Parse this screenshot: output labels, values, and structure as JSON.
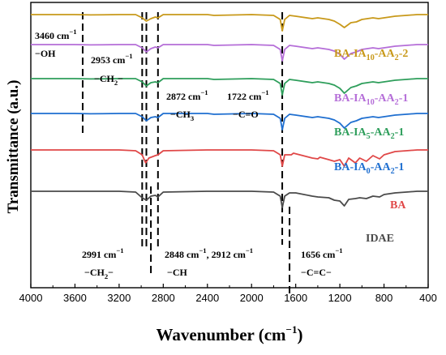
{
  "chart_data": {
    "type": "line",
    "title": "",
    "xlabel": "Wavenumber (cm",
    "xlabel_sup": "−1",
    "xlabel_tail": ")",
    "ylabel": "Transmittance (a.u.)",
    "xlim": [
      4000,
      400
    ],
    "x_ticks": [
      "4000",
      "3600",
      "3200",
      "2800",
      "2400",
      "2000",
      "1600",
      "1200",
      "800",
      "400"
    ],
    "grid": false,
    "series": [
      {
        "name_parts": [
          [
            "BA-IA",
            ""
          ],
          [
            "10",
            "sub"
          ],
          [
            "-AA",
            ""
          ],
          [
            "2",
            "sub"
          ],
          [
            "-2",
            ""
          ]
        ],
        "color": "#C8991A",
        "points": [
          [
            4000,
            0.0
          ],
          [
            3600,
            0.0
          ],
          [
            3460,
            -0.02
          ],
          [
            3200,
            0.0
          ],
          [
            3050,
            0.0
          ],
          [
            2991,
            -0.2
          ],
          [
            2953,
            -0.4
          ],
          [
            2912,
            -0.25
          ],
          [
            2872,
            -0.15
          ],
          [
            2848,
            -0.2
          ],
          [
            2800,
            0.0
          ],
          [
            2400,
            0.0
          ],
          [
            2340,
            -0.05
          ],
          [
            2000,
            0.0
          ],
          [
            1800,
            -0.05
          ],
          [
            1740,
            -0.3
          ],
          [
            1722,
            -1.0
          ],
          [
            1700,
            -0.3
          ],
          [
            1656,
            -0.05
          ],
          [
            1600,
            -0.1
          ],
          [
            1450,
            -0.25
          ],
          [
            1400,
            -0.2
          ],
          [
            1300,
            -0.3
          ],
          [
            1250,
            -0.4
          ],
          [
            1200,
            -0.6
          ],
          [
            1160,
            -0.8
          ],
          [
            1100,
            -0.5
          ],
          [
            1050,
            -0.45
          ],
          [
            1000,
            -0.3
          ],
          [
            950,
            -0.25
          ],
          [
            900,
            -0.2
          ],
          [
            850,
            -0.25
          ],
          [
            800,
            -0.2
          ],
          [
            750,
            -0.15
          ],
          [
            700,
            -0.1
          ],
          [
            600,
            -0.05
          ],
          [
            500,
            0.0
          ],
          [
            400,
            0.0
          ]
        ]
      },
      {
        "name_parts": [
          [
            "BA-IA",
            ""
          ],
          [
            "10",
            "sub"
          ],
          [
            "-AA",
            ""
          ],
          [
            "2",
            "sub"
          ],
          [
            "-1",
            ""
          ]
        ],
        "color": "#B56ED8",
        "points": [
          [
            4000,
            0.0
          ],
          [
            3600,
            0.0
          ],
          [
            3460,
            -0.02
          ],
          [
            3200,
            0.0
          ],
          [
            3050,
            0.0
          ],
          [
            2991,
            -0.2
          ],
          [
            2953,
            -0.45
          ],
          [
            2912,
            -0.25
          ],
          [
            2872,
            -0.15
          ],
          [
            2848,
            -0.2
          ],
          [
            2800,
            0.0
          ],
          [
            2400,
            0.0
          ],
          [
            2340,
            -0.05
          ],
          [
            2000,
            0.0
          ],
          [
            1800,
            -0.05
          ],
          [
            1740,
            -0.3
          ],
          [
            1722,
            -1.0
          ],
          [
            1700,
            -0.3
          ],
          [
            1656,
            -0.05
          ],
          [
            1600,
            -0.1
          ],
          [
            1450,
            -0.25
          ],
          [
            1400,
            -0.2
          ],
          [
            1300,
            -0.3
          ],
          [
            1250,
            -0.4
          ],
          [
            1200,
            -0.6
          ],
          [
            1160,
            -0.9
          ],
          [
            1100,
            -0.55
          ],
          [
            1050,
            -0.45
          ],
          [
            1000,
            -0.3
          ],
          [
            950,
            -0.25
          ],
          [
            900,
            -0.2
          ],
          [
            850,
            -0.25
          ],
          [
            800,
            -0.2
          ],
          [
            750,
            -0.15
          ],
          [
            700,
            -0.1
          ],
          [
            600,
            -0.05
          ],
          [
            500,
            0.0
          ],
          [
            400,
            0.0
          ]
        ]
      },
      {
        "name_parts": [
          [
            "BA-IA",
            ""
          ],
          [
            "5",
            "sub"
          ],
          [
            "-AA",
            ""
          ],
          [
            "2",
            "sub"
          ],
          [
            "-1",
            ""
          ]
        ],
        "color": "#2E9E5B",
        "points": [
          [
            4000,
            0.0
          ],
          [
            3600,
            0.0
          ],
          [
            3460,
            -0.02
          ],
          [
            3200,
            0.0
          ],
          [
            3050,
            0.0
          ],
          [
            2991,
            -0.2
          ],
          [
            2953,
            -0.45
          ],
          [
            2912,
            -0.25
          ],
          [
            2872,
            -0.2
          ],
          [
            2848,
            -0.25
          ],
          [
            2800,
            0.0
          ],
          [
            2400,
            0.0
          ],
          [
            2340,
            -0.05
          ],
          [
            2000,
            0.0
          ],
          [
            1800,
            -0.05
          ],
          [
            1740,
            -0.3
          ],
          [
            1722,
            -1.0
          ],
          [
            1700,
            -0.3
          ],
          [
            1656,
            -0.05
          ],
          [
            1600,
            -0.1
          ],
          [
            1450,
            -0.25
          ],
          [
            1400,
            -0.2
          ],
          [
            1300,
            -0.3
          ],
          [
            1250,
            -0.4
          ],
          [
            1200,
            -0.6
          ],
          [
            1160,
            -0.9
          ],
          [
            1100,
            -0.55
          ],
          [
            1050,
            -0.45
          ],
          [
            1000,
            -0.3
          ],
          [
            950,
            -0.25
          ],
          [
            900,
            -0.2
          ],
          [
            850,
            -0.25
          ],
          [
            800,
            -0.2
          ],
          [
            750,
            -0.15
          ],
          [
            700,
            -0.1
          ],
          [
            600,
            -0.05
          ],
          [
            500,
            0.0
          ],
          [
            400,
            0.0
          ]
        ]
      },
      {
        "name_parts": [
          [
            "BA-IA",
            ""
          ],
          [
            "0",
            "sub"
          ],
          [
            "-AA",
            ""
          ],
          [
            "2",
            "sub"
          ],
          [
            "-1",
            ""
          ]
        ],
        "color": "#1F6FD0",
        "points": [
          [
            4000,
            0.0
          ],
          [
            3600,
            0.0
          ],
          [
            3460,
            -0.02
          ],
          [
            3200,
            0.0
          ],
          [
            3050,
            0.0
          ],
          [
            2991,
            -0.2
          ],
          [
            2953,
            -0.45
          ],
          [
            2912,
            -0.25
          ],
          [
            2872,
            -0.2
          ],
          [
            2848,
            -0.25
          ],
          [
            2800,
            0.0
          ],
          [
            2400,
            0.0
          ],
          [
            2340,
            -0.05
          ],
          [
            2000,
            0.0
          ],
          [
            1800,
            -0.05
          ],
          [
            1740,
            -0.3
          ],
          [
            1722,
            -1.0
          ],
          [
            1700,
            -0.3
          ],
          [
            1656,
            -0.05
          ],
          [
            1600,
            -0.1
          ],
          [
            1450,
            -0.25
          ],
          [
            1400,
            -0.2
          ],
          [
            1300,
            -0.3
          ],
          [
            1250,
            -0.4
          ],
          [
            1200,
            -0.6
          ],
          [
            1160,
            -0.9
          ],
          [
            1100,
            -0.55
          ],
          [
            1050,
            -0.45
          ],
          [
            1000,
            -0.3
          ],
          [
            950,
            -0.25
          ],
          [
            900,
            -0.2
          ],
          [
            850,
            -0.25
          ],
          [
            800,
            -0.2
          ],
          [
            750,
            -0.15
          ],
          [
            700,
            -0.1
          ],
          [
            600,
            -0.05
          ],
          [
            500,
            0.0
          ],
          [
            400,
            0.0
          ]
        ]
      },
      {
        "name_parts": [
          [
            "BA",
            ""
          ]
        ],
        "color": "#E04848",
        "points": [
          [
            4000,
            0.0
          ],
          [
            3600,
            0.0
          ],
          [
            3200,
            0.0
          ],
          [
            3050,
            -0.05
          ],
          [
            2991,
            -0.3
          ],
          [
            2960,
            -0.8
          ],
          [
            2930,
            -0.5
          ],
          [
            2872,
            -0.35
          ],
          [
            2848,
            -0.3
          ],
          [
            2800,
            -0.05
          ],
          [
            2400,
            0.0
          ],
          [
            2000,
            0.0
          ],
          [
            1800,
            -0.05
          ],
          [
            1740,
            -0.3
          ],
          [
            1722,
            -1.0
          ],
          [
            1700,
            -0.3
          ],
          [
            1640,
            -0.3
          ],
          [
            1620,
            -0.2
          ],
          [
            1450,
            -0.5
          ],
          [
            1400,
            -0.55
          ],
          [
            1380,
            -0.45
          ],
          [
            1300,
            -0.6
          ],
          [
            1250,
            -0.7
          ],
          [
            1200,
            -0.6
          ],
          [
            1160,
            -1.0
          ],
          [
            1120,
            -0.5
          ],
          [
            1060,
            -0.8
          ],
          [
            1020,
            -0.5
          ],
          [
            960,
            -0.7
          ],
          [
            900,
            -0.35
          ],
          [
            840,
            -0.55
          ],
          [
            800,
            -0.3
          ],
          [
            750,
            -0.2
          ],
          [
            700,
            -0.1
          ],
          [
            600,
            -0.05
          ],
          [
            500,
            0.0
          ],
          [
            400,
            0.0
          ]
        ]
      },
      {
        "name_parts": [
          [
            "IDAE",
            ""
          ]
        ],
        "color": "#4A4A4A",
        "points": [
          [
            4000,
            0.0
          ],
          [
            3600,
            0.0
          ],
          [
            3200,
            0.0
          ],
          [
            3050,
            -0.05
          ],
          [
            2991,
            -0.4
          ],
          [
            2953,
            -0.55
          ],
          [
            2912,
            -0.3
          ],
          [
            2872,
            -0.25
          ],
          [
            2848,
            -0.35
          ],
          [
            2800,
            -0.05
          ],
          [
            2400,
            0.0
          ],
          [
            2000,
            0.0
          ],
          [
            1800,
            -0.05
          ],
          [
            1740,
            -0.3
          ],
          [
            1722,
            -1.0
          ],
          [
            1700,
            -0.3
          ],
          [
            1656,
            -0.1
          ],
          [
            1600,
            -0.1
          ],
          [
            1450,
            -0.3
          ],
          [
            1400,
            -0.35
          ],
          [
            1300,
            -0.4
          ],
          [
            1250,
            -0.55
          ],
          [
            1200,
            -0.6
          ],
          [
            1160,
            -0.9
          ],
          [
            1120,
            -0.5
          ],
          [
            1060,
            -0.45
          ],
          [
            1020,
            -0.4
          ],
          [
            960,
            -0.45
          ],
          [
            900,
            -0.3
          ],
          [
            840,
            -0.35
          ],
          [
            800,
            -0.2
          ],
          [
            750,
            -0.15
          ],
          [
            700,
            -0.1
          ],
          [
            600,
            -0.05
          ],
          [
            500,
            0.0
          ],
          [
            400,
            0.0
          ]
        ]
      }
    ],
    "reference_lines": [
      {
        "x": 3530,
        "style": "dashed"
      },
      {
        "x": 2991,
        "style": "dashed"
      },
      {
        "x": 2953,
        "style": "dashed"
      },
      {
        "x": 2912,
        "style": "dashed"
      },
      {
        "x": 2848,
        "style": "dashed"
      },
      {
        "x": 1722,
        "style": "dashed"
      },
      {
        "x": 1656,
        "style": "dashed"
      }
    ],
    "annotations": [
      {
        "id": "oh",
        "line1": [
          [
            "3460 cm",
            ""
          ],
          [
            "−1",
            "sup"
          ]
        ],
        "line2": [
          [
            "−OH",
            ""
          ]
        ]
      },
      {
        "id": "ch2a",
        "line1": [
          [
            "2953 cm",
            ""
          ],
          [
            "−1",
            "sup"
          ]
        ],
        "line2": [
          [
            "−CH",
            ""
          ],
          [
            "2",
            "sub"
          ],
          [
            "−",
            ""
          ]
        ]
      },
      {
        "id": "ch3",
        "line1": [
          [
            "2872 cm",
            ""
          ],
          [
            "−1",
            "sup"
          ]
        ],
        "line2": [
          [
            "−CH",
            ""
          ],
          [
            "3",
            "sub"
          ]
        ]
      },
      {
        "id": "co",
        "line1": [
          [
            "1722 cm",
            ""
          ],
          [
            "−1",
            "sup"
          ]
        ],
        "line2": [
          [
            "−C=O",
            ""
          ]
        ]
      },
      {
        "id": "ch2b",
        "line1": [
          [
            "2991 cm",
            ""
          ],
          [
            "−1",
            "sup"
          ]
        ],
        "line2": [
          [
            "−CH",
            ""
          ],
          [
            "2",
            "sub"
          ],
          [
            "−",
            ""
          ]
        ]
      },
      {
        "id": "ch",
        "line1": [
          [
            "2848 cm",
            ""
          ],
          [
            "−1",
            "sup"
          ],
          [
            ", 2912 cm",
            ""
          ],
          [
            "−1",
            "sup"
          ]
        ],
        "line2": [
          [
            "−CH",
            ""
          ]
        ]
      },
      {
        "id": "cc",
        "line1": [
          [
            "1656 cm",
            ""
          ],
          [
            "−1",
            "sup"
          ]
        ],
        "line2": [
          [
            "−C=C−",
            ""
          ]
        ]
      }
    ]
  }
}
